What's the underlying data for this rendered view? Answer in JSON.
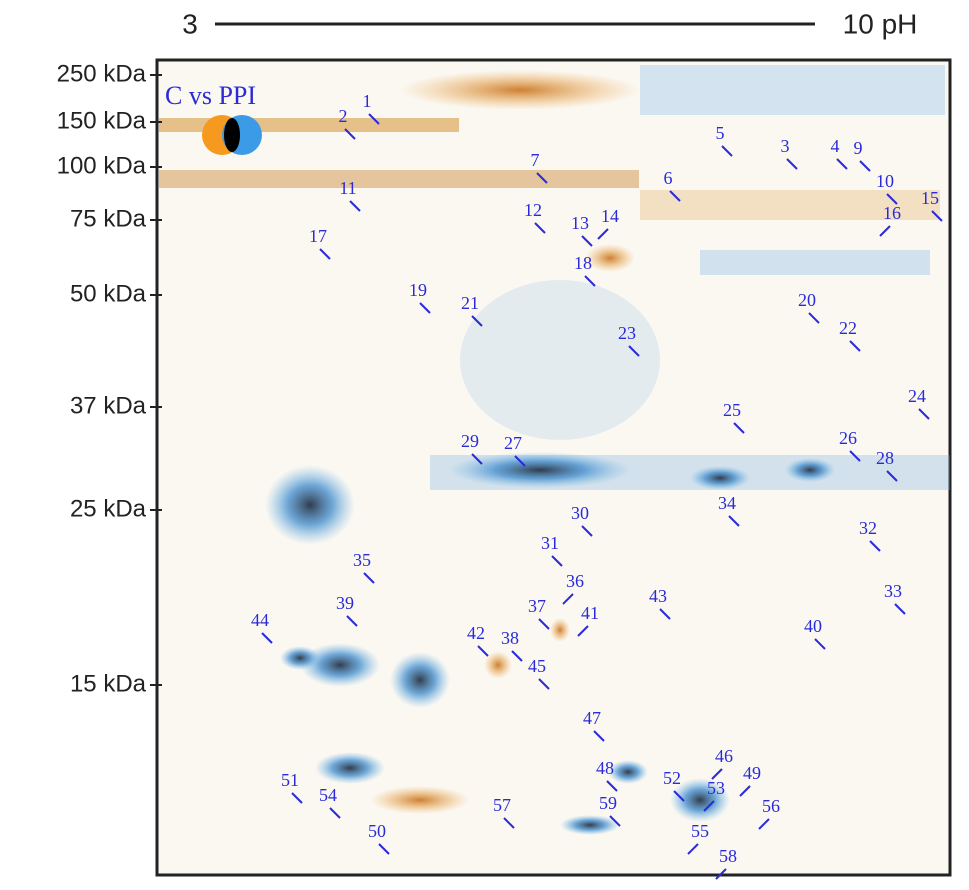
{
  "header": {
    "left_label": "3",
    "right_label": "10 pH"
  },
  "mw_labels": [
    "250 kDa",
    "150 kDa",
    "100 kDa",
    "75 kDa",
    "50 kDa",
    "37 kDa",
    "25 kDa",
    "15 kDa"
  ],
  "legend": "C vs PPI",
  "spots": [
    "1",
    "2",
    "3",
    "4",
    "5",
    "6",
    "7",
    "9",
    "10",
    "11",
    "12",
    "13",
    "14",
    "15",
    "16",
    "17",
    "18",
    "19",
    "20",
    "21",
    "22",
    "23",
    "24",
    "25",
    "26",
    "27",
    "28",
    "29",
    "30",
    "31",
    "32",
    "33",
    "34",
    "35",
    "36",
    "37",
    "38",
    "39",
    "40",
    "41",
    "42",
    "43",
    "44",
    "45",
    "46",
    "47",
    "48",
    "49",
    "50",
    "51",
    "52",
    "53",
    "54",
    "55",
    "56",
    "57",
    "58",
    "59"
  ]
}
